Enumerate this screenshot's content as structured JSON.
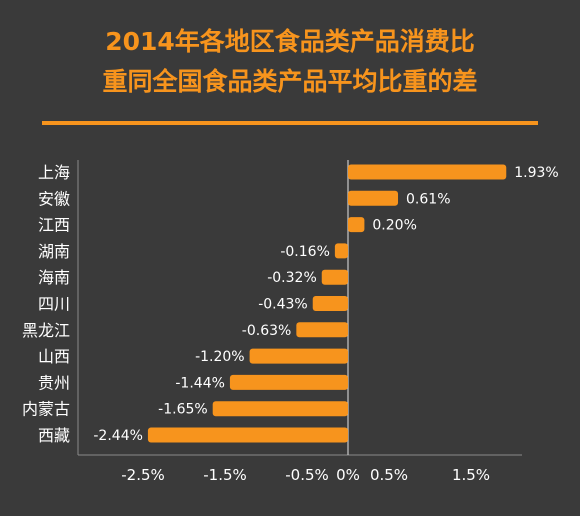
{
  "title_line1": "2014年各地区食品类产品消费比",
  "title_line2": "重同全国食品类产品平均比重的差",
  "colors": {
    "background": "#3a3a3a",
    "accent": "#f7941d",
    "text": "#ffffff"
  },
  "chart_data": {
    "type": "bar",
    "orientation": "horizontal",
    "categories": [
      "上海",
      "安徽",
      "江西",
      "湖南",
      "海南",
      "四川",
      "黑龙江",
      "山西",
      "贵州",
      "内蒙古",
      "西藏"
    ],
    "values": [
      1.93,
      0.61,
      0.2,
      -0.16,
      -0.32,
      -0.43,
      -0.63,
      -1.2,
      -1.44,
      -1.65,
      -2.44
    ],
    "data_labels": [
      "1.93%",
      "0.61%",
      "0.20%",
      "-0.16%",
      "-0.32%",
      "-0.43%",
      "-0.63%",
      "-1.20%",
      "-1.44%",
      "-1.65%",
      "-2.44%"
    ],
    "x_ticks": [
      -2.5,
      -1.5,
      -0.5,
      0,
      0.5,
      1.5
    ],
    "x_tick_labels": [
      "-2.5%",
      "-1.5%",
      "-0.5%",
      "0%",
      "0.5%",
      "1.5%"
    ],
    "xlim": [
      -3.1,
      2.1
    ],
    "unit": "%",
    "grid": false,
    "legend": "none"
  }
}
